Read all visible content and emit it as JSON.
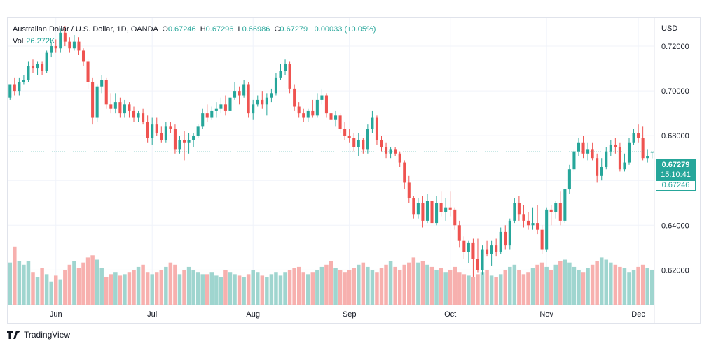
{
  "legend": {
    "symbol": "Australian Dollar / U.S. Dollar, 1D, OANDA",
    "o_label": "O",
    "o": "0.67246",
    "h_label": "H",
    "h": "0.67296",
    "l_label": "L",
    "l": "0.66986",
    "c_label": "C",
    "c": "0.67279",
    "change": "+0.00033 (+0.05%)",
    "vol_label": "Vol",
    "vol": "26.272K"
  },
  "currency": "USD",
  "price_tags": {
    "last": "0.67279",
    "countdown": "15:10:41",
    "open": "0.67246"
  },
  "brand": "TradingView",
  "colors": {
    "up": "#26a69a",
    "down": "#ef5350",
    "vol_up": "#9fd5cf",
    "vol_down": "#f7b0ae",
    "grid": "#f0f3fa"
  },
  "chart_data": {
    "type": "candlestick",
    "ylim": [
      0.6045,
      0.7325
    ],
    "yticks": [
      "0.62000",
      "0.64000",
      "0.66000",
      "0.68000",
      "0.70000",
      "0.72000"
    ],
    "ytick_values": [
      0.62,
      0.64,
      0.66,
      0.68,
      0.7,
      0.72
    ],
    "xtick_labels": [
      "Jun",
      "Jul",
      "Aug",
      "Sep",
      "Oct",
      "Nov",
      "Dec"
    ],
    "xtick_index": [
      10,
      31,
      53,
      74,
      96,
      117,
      137
    ],
    "grid": true,
    "last_price": 0.67279,
    "volume_max": 100,
    "ohlc": [
      [
        0.697,
        0.703,
        0.696,
        0.703
      ],
      [
        0.703,
        0.706,
        0.698,
        0.7
      ],
      [
        0.7,
        0.706,
        0.698,
        0.704
      ],
      [
        0.704,
        0.707,
        0.703,
        0.705
      ],
      [
        0.705,
        0.713,
        0.704,
        0.711
      ],
      [
        0.711,
        0.714,
        0.708,
        0.71
      ],
      [
        0.71,
        0.713,
        0.707,
        0.712
      ],
      [
        0.712,
        0.713,
        0.707,
        0.709
      ],
      [
        0.709,
        0.718,
        0.708,
        0.717
      ],
      [
        0.717,
        0.722,
        0.715,
        0.72
      ],
      [
        0.72,
        0.723,
        0.717,
        0.719
      ],
      [
        0.719,
        0.728,
        0.717,
        0.726
      ],
      [
        0.726,
        0.729,
        0.72,
        0.722
      ],
      [
        0.722,
        0.724,
        0.717,
        0.719
      ],
      [
        0.719,
        0.725,
        0.718,
        0.722
      ],
      [
        0.722,
        0.724,
        0.716,
        0.718
      ],
      [
        0.718,
        0.719,
        0.711,
        0.713
      ],
      [
        0.713,
        0.714,
        0.701,
        0.704
      ],
      [
        0.704,
        0.706,
        0.685,
        0.688
      ],
      [
        0.688,
        0.703,
        0.686,
        0.702
      ],
      [
        0.702,
        0.707,
        0.699,
        0.705
      ],
      [
        0.705,
        0.706,
        0.692,
        0.694
      ],
      [
        0.694,
        0.699,
        0.69,
        0.692
      ],
      [
        0.692,
        0.699,
        0.69,
        0.695
      ],
      [
        0.695,
        0.697,
        0.688,
        0.69
      ],
      [
        0.69,
        0.696,
        0.688,
        0.694
      ],
      [
        0.694,
        0.695,
        0.688,
        0.691
      ],
      [
        0.691,
        0.693,
        0.686,
        0.688
      ],
      [
        0.688,
        0.691,
        0.686,
        0.69
      ],
      [
        0.69,
        0.692,
        0.685,
        0.686
      ],
      [
        0.686,
        0.689,
        0.677,
        0.679
      ],
      [
        0.679,
        0.688,
        0.676,
        0.685
      ],
      [
        0.685,
        0.688,
        0.68,
        0.681
      ],
      [
        0.681,
        0.684,
        0.677,
        0.678
      ],
      [
        0.678,
        0.686,
        0.677,
        0.684
      ],
      [
        0.684,
        0.686,
        0.681,
        0.683
      ],
      [
        0.683,
        0.685,
        0.672,
        0.674
      ],
      [
        0.674,
        0.68,
        0.672,
        0.678
      ],
      [
        0.678,
        0.682,
        0.669,
        0.677
      ],
      [
        0.677,
        0.681,
        0.672,
        0.678
      ],
      [
        0.678,
        0.681,
        0.675,
        0.68
      ],
      [
        0.68,
        0.685,
        0.679,
        0.684
      ],
      [
        0.684,
        0.692,
        0.683,
        0.69
      ],
      [
        0.69,
        0.694,
        0.686,
        0.688
      ],
      [
        0.688,
        0.693,
        0.687,
        0.691
      ],
      [
        0.691,
        0.695,
        0.688,
        0.692
      ],
      [
        0.692,
        0.697,
        0.69,
        0.694
      ],
      [
        0.694,
        0.698,
        0.689,
        0.691
      ],
      [
        0.691,
        0.699,
        0.69,
        0.697
      ],
      [
        0.697,
        0.704,
        0.696,
        0.7
      ],
      [
        0.7,
        0.702,
        0.694,
        0.698
      ],
      [
        0.698,
        0.705,
        0.697,
        0.703
      ],
      [
        0.703,
        0.704,
        0.688,
        0.69
      ],
      [
        0.69,
        0.696,
        0.687,
        0.694
      ],
      [
        0.694,
        0.698,
        0.693,
        0.696
      ],
      [
        0.696,
        0.7,
        0.692,
        0.694
      ],
      [
        0.694,
        0.699,
        0.689,
        0.697
      ],
      [
        0.697,
        0.701,
        0.695,
        0.699
      ],
      [
        0.699,
        0.708,
        0.698,
        0.706
      ],
      [
        0.706,
        0.712,
        0.705,
        0.709
      ],
      [
        0.709,
        0.714,
        0.707,
        0.712
      ],
      [
        0.712,
        0.713,
        0.699,
        0.701
      ],
      [
        0.701,
        0.703,
        0.691,
        0.693
      ],
      [
        0.693,
        0.695,
        0.688,
        0.69
      ],
      [
        0.69,
        0.692,
        0.686,
        0.688
      ],
      [
        0.688,
        0.692,
        0.686,
        0.691
      ],
      [
        0.691,
        0.696,
        0.688,
        0.689
      ],
      [
        0.689,
        0.699,
        0.688,
        0.696
      ],
      [
        0.696,
        0.701,
        0.694,
        0.698
      ],
      [
        0.698,
        0.699,
        0.688,
        0.69
      ],
      [
        0.69,
        0.693,
        0.685,
        0.687
      ],
      [
        0.687,
        0.691,
        0.684,
        0.689
      ],
      [
        0.689,
        0.69,
        0.681,
        0.683
      ],
      [
        0.683,
        0.686,
        0.678,
        0.68
      ],
      [
        0.68,
        0.683,
        0.677,
        0.679
      ],
      [
        0.679,
        0.681,
        0.673,
        0.675
      ],
      [
        0.675,
        0.681,
        0.671,
        0.678
      ],
      [
        0.678,
        0.679,
        0.672,
        0.674
      ],
      [
        0.674,
        0.685,
        0.672,
        0.683
      ],
      [
        0.683,
        0.691,
        0.681,
        0.688
      ],
      [
        0.688,
        0.689,
        0.676,
        0.678
      ],
      [
        0.678,
        0.68,
        0.673,
        0.675
      ],
      [
        0.675,
        0.677,
        0.67,
        0.672
      ],
      [
        0.672,
        0.675,
        0.67,
        0.674
      ],
      [
        0.674,
        0.675,
        0.671,
        0.672
      ],
      [
        0.672,
        0.673,
        0.666,
        0.668
      ],
      [
        0.668,
        0.669,
        0.656,
        0.659
      ],
      [
        0.659,
        0.662,
        0.65,
        0.652
      ],
      [
        0.652,
        0.653,
        0.643,
        0.645
      ],
      [
        0.645,
        0.652,
        0.643,
        0.65
      ],
      [
        0.65,
        0.653,
        0.639,
        0.642
      ],
      [
        0.642,
        0.654,
        0.641,
        0.651
      ],
      [
        0.651,
        0.653,
        0.639,
        0.641
      ],
      [
        0.641,
        0.653,
        0.64,
        0.65
      ],
      [
        0.65,
        0.655,
        0.644,
        0.646
      ],
      [
        0.646,
        0.652,
        0.642,
        0.648
      ],
      [
        0.648,
        0.655,
        0.644,
        0.647
      ],
      [
        0.647,
        0.648,
        0.638,
        0.64
      ],
      [
        0.64,
        0.642,
        0.63,
        0.633
      ],
      [
        0.633,
        0.635,
        0.625,
        0.628
      ],
      [
        0.628,
        0.633,
        0.623,
        0.632
      ],
      [
        0.632,
        0.634,
        0.617,
        0.625
      ],
      [
        0.625,
        0.634,
        0.619,
        0.62
      ],
      [
        0.62,
        0.631,
        0.618,
        0.629
      ],
      [
        0.629,
        0.633,
        0.626,
        0.627
      ],
      [
        0.627,
        0.633,
        0.622,
        0.631
      ],
      [
        0.631,
        0.634,
        0.626,
        0.628
      ],
      [
        0.628,
        0.639,
        0.627,
        0.637
      ],
      [
        0.637,
        0.64,
        0.629,
        0.631
      ],
      [
        0.631,
        0.643,
        0.629,
        0.642
      ],
      [
        0.642,
        0.652,
        0.641,
        0.65
      ],
      [
        0.65,
        0.653,
        0.642,
        0.645
      ],
      [
        0.645,
        0.649,
        0.639,
        0.642
      ],
      [
        0.642,
        0.646,
        0.638,
        0.64
      ],
      [
        0.64,
        0.648,
        0.638,
        0.641
      ],
      [
        0.641,
        0.649,
        0.636,
        0.638
      ],
      [
        0.638,
        0.64,
        0.627,
        0.629
      ],
      [
        0.629,
        0.648,
        0.628,
        0.647
      ],
      [
        0.647,
        0.649,
        0.64,
        0.646
      ],
      [
        0.646,
        0.651,
        0.643,
        0.65
      ],
      [
        0.65,
        0.655,
        0.64,
        0.642
      ],
      [
        0.642,
        0.656,
        0.641,
        0.656
      ],
      [
        0.656,
        0.667,
        0.654,
        0.665
      ],
      [
        0.665,
        0.674,
        0.664,
        0.673
      ],
      [
        0.673,
        0.679,
        0.671,
        0.677
      ],
      [
        0.677,
        0.68,
        0.67,
        0.672
      ],
      [
        0.672,
        0.677,
        0.669,
        0.674
      ],
      [
        0.674,
        0.677,
        0.669,
        0.67
      ],
      [
        0.67,
        0.672,
        0.659,
        0.662
      ],
      [
        0.662,
        0.67,
        0.66,
        0.666
      ],
      [
        0.666,
        0.675,
        0.665,
        0.673
      ],
      [
        0.673,
        0.678,
        0.671,
        0.676
      ],
      [
        0.676,
        0.679,
        0.672,
        0.675
      ],
      [
        0.675,
        0.677,
        0.664,
        0.665
      ],
      [
        0.665,
        0.672,
        0.664,
        0.668
      ],
      [
        0.668,
        0.679,
        0.667,
        0.677
      ],
      [
        0.677,
        0.683,
        0.676,
        0.681
      ],
      [
        0.681,
        0.685,
        0.677,
        0.679
      ],
      [
        0.679,
        0.684,
        0.669,
        0.67
      ],
      [
        0.67,
        0.674,
        0.668,
        0.671
      ],
      [
        0.6724,
        0.673,
        0.6699,
        0.6728
      ]
    ],
    "volume": [
      58,
      80,
      60,
      55,
      60,
      45,
      38,
      50,
      42,
      32,
      40,
      35,
      48,
      55,
      60,
      50,
      58,
      65,
      68,
      62,
      50,
      38,
      42,
      45,
      40,
      42,
      45,
      48,
      52,
      55,
      45,
      42,
      45,
      48,
      52,
      58,
      55,
      42,
      48,
      52,
      48,
      45,
      42,
      42,
      45,
      40,
      38,
      48,
      45,
      42,
      40,
      38,
      42,
      48,
      45,
      40,
      38,
      42,
      45,
      40,
      45,
      48,
      50,
      52,
      45,
      42,
      45,
      48,
      52,
      55,
      60,
      50,
      48,
      45,
      48,
      50,
      55,
      58,
      52,
      48,
      45,
      50,
      55,
      60,
      52,
      48,
      55,
      58,
      65,
      58,
      60,
      55,
      52,
      48,
      50,
      45,
      48,
      52,
      45,
      42,
      40,
      38,
      42,
      45,
      48,
      40,
      38,
      42,
      48,
      52,
      55,
      48,
      42,
      45,
      50,
      55,
      58,
      52,
      48,
      55,
      60,
      62,
      58,
      52,
      48,
      45,
      50,
      55,
      60,
      65,
      62,
      58,
      55,
      52,
      50,
      45,
      48,
      52,
      55,
      50,
      48
    ]
  }
}
